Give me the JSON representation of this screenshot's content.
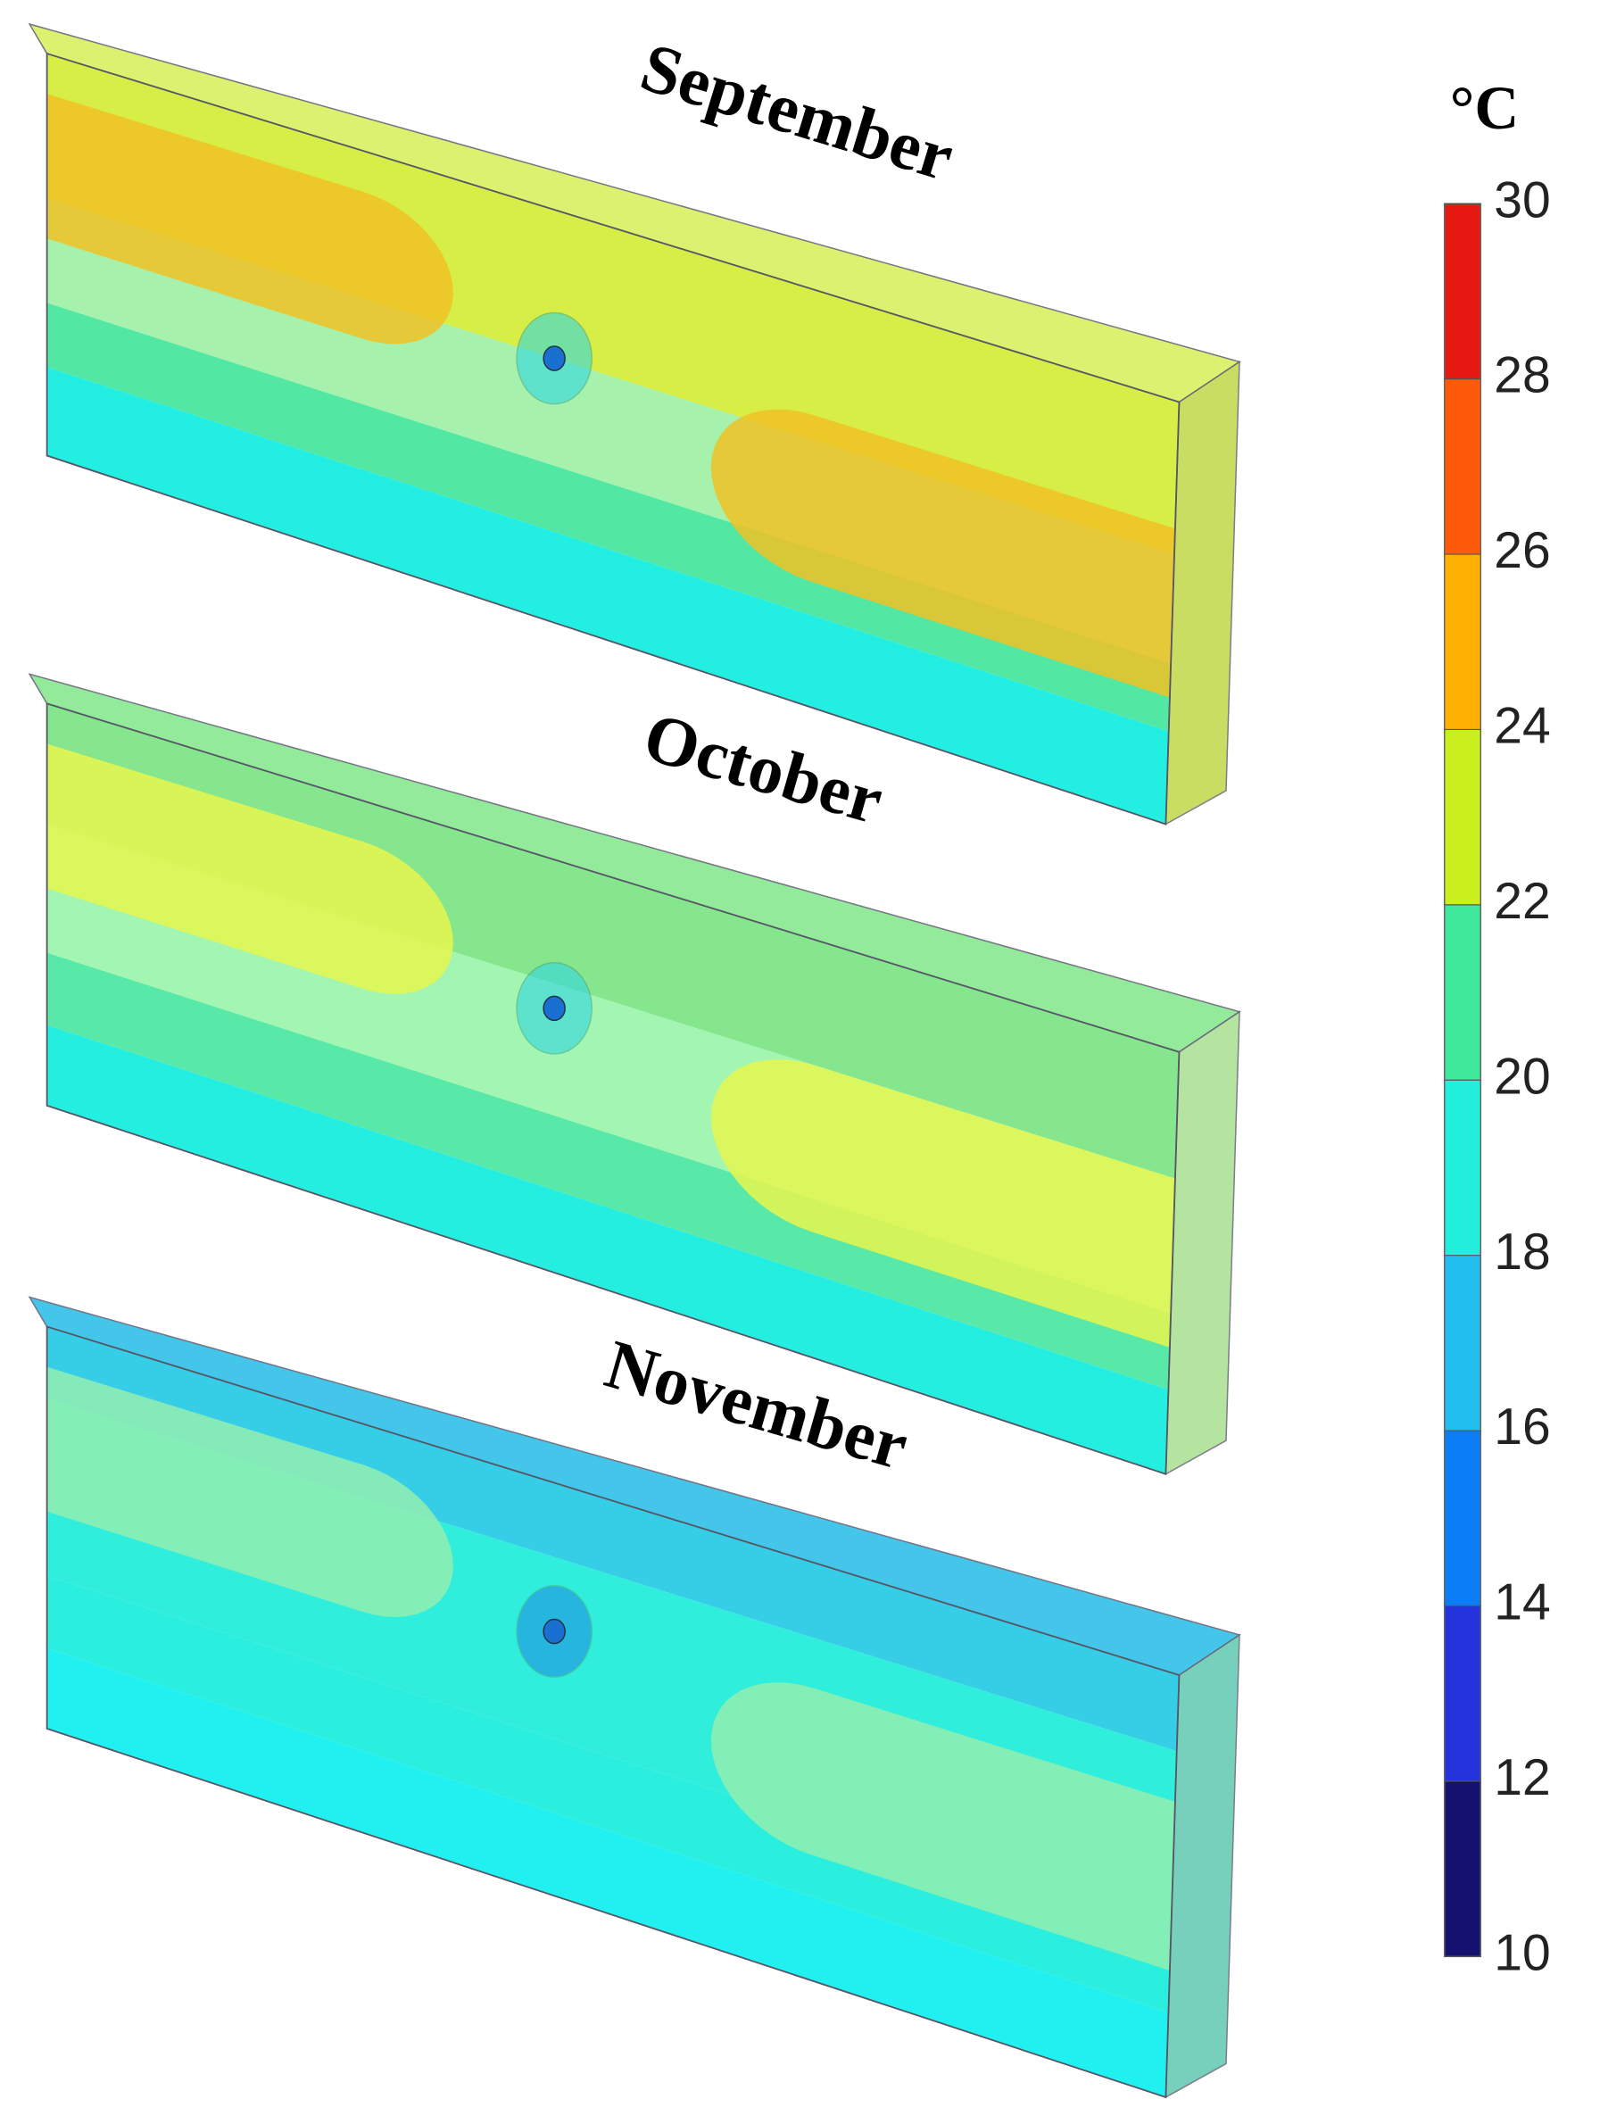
{
  "panels": [
    {
      "title": "September"
    },
    {
      "title": "October"
    },
    {
      "title": "November"
    }
  ],
  "colorbar": {
    "unit": "°C",
    "ticks": [
      10,
      12,
      14,
      16,
      18,
      20,
      22,
      24,
      26,
      28,
      30
    ],
    "colors": [
      "#14126e",
      "#2433dc",
      "#0a7cf5",
      "#20bff0",
      "#22eedc",
      "#3fe89a",
      "#c9f01c",
      "#ffb000",
      "#ff5a0a",
      "#e61a12"
    ]
  }
}
